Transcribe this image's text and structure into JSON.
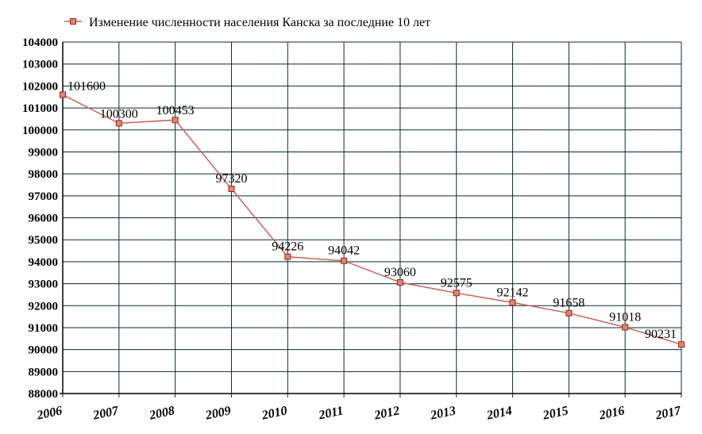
{
  "chart_data": {
    "type": "line",
    "title": "",
    "xlabel": "",
    "ylabel": "",
    "series": [
      {
        "name": "Изменение численности населения Канска за последние 10 лет",
        "values": [
          101600,
          100300,
          100453,
          97320,
          94226,
          94042,
          93060,
          92575,
          92142,
          91658,
          91018,
          90231
        ]
      }
    ],
    "categories": [
      "2006",
      "2007",
      "2008",
      "2009",
      "2010",
      "2011",
      "2012",
      "2013",
      "2014",
      "2015",
      "2016",
      "2017"
    ],
    "data_labels": [
      "101600",
      "100300",
      "100453",
      "97320",
      "94226",
      "94042",
      "93060",
      "92575",
      "92142",
      "91658",
      "91018",
      "90231"
    ],
    "y_ticks": [
      "88000",
      "89000",
      "90000",
      "91000",
      "92000",
      "93000",
      "94000",
      "95000",
      "96000",
      "97000",
      "98000",
      "99000",
      "100000",
      "101000",
      "102000",
      "103000",
      "104000"
    ],
    "ylim": [
      88000,
      104000
    ],
    "grid": true,
    "legend_position": "top-left",
    "colors": {
      "line": "#c8645a",
      "marker_fill": "#e8826e",
      "marker_stroke": "#8b2a1e",
      "grid": "#0b2a36"
    }
  }
}
